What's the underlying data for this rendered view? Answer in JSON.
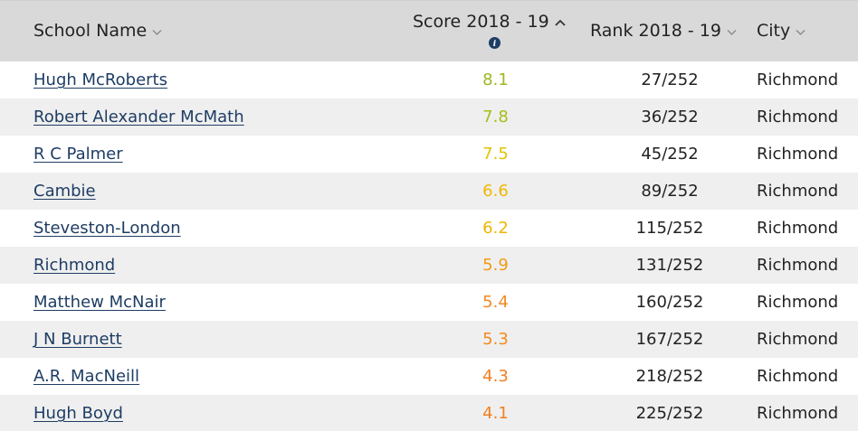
{
  "header": {
    "school_name": "School Name",
    "score": "Score 2018 - 19",
    "rank": "Rank 2018 - 19",
    "city": "City",
    "sort_icon": "chevron-down-icon",
    "sorted_icon": "chevron-up-icon",
    "info_icon": "info-icon"
  },
  "colors": {
    "header_bg": "#d9d9d9",
    "row_alt_bg": "#efefef",
    "link": "#1e3d64",
    "score_high": "#9ab81e",
    "score_mid": "#e6c200",
    "score_midlow": "#f0b400",
    "score_low": "#f28a1f"
  },
  "rows": [
    {
      "name": "Hugh McRoberts",
      "score": "8.1",
      "rank": "27/252",
      "city": "Richmond",
      "color": "#9ab81e"
    },
    {
      "name": "Robert Alexander McMath",
      "score": "7.8",
      "rank": "36/252",
      "city": "Richmond",
      "color": "#a8bd16"
    },
    {
      "name": "R C Palmer",
      "score": "7.5",
      "rank": "45/252",
      "city": "Richmond",
      "color": "#e2c400"
    },
    {
      "name": "Cambie",
      "score": "6.6",
      "rank": "89/252",
      "city": "Richmond",
      "color": "#efb800"
    },
    {
      "name": "Steveston-London",
      "score": "6.2",
      "rank": "115/252",
      "city": "Richmond",
      "color": "#f0b400"
    },
    {
      "name": "Richmond",
      "score": "5.9",
      "rank": "131/252",
      "city": "Richmond",
      "color": "#f29a15"
    },
    {
      "name": "Matthew McNair",
      "score": "5.4",
      "rank": "160/252",
      "city": "Richmond",
      "color": "#f28a1f"
    },
    {
      "name": "J N Burnett",
      "score": "5.3",
      "rank": "167/252",
      "city": "Richmond",
      "color": "#f28a1f"
    },
    {
      "name": "A.R. MacNeill",
      "score": "4.3",
      "rank": "218/252",
      "city": "Richmond",
      "color": "#f27f1f"
    },
    {
      "name": "Hugh Boyd",
      "score": "4.1",
      "rank": "225/252",
      "city": "Richmond",
      "color": "#f27f1f"
    }
  ]
}
